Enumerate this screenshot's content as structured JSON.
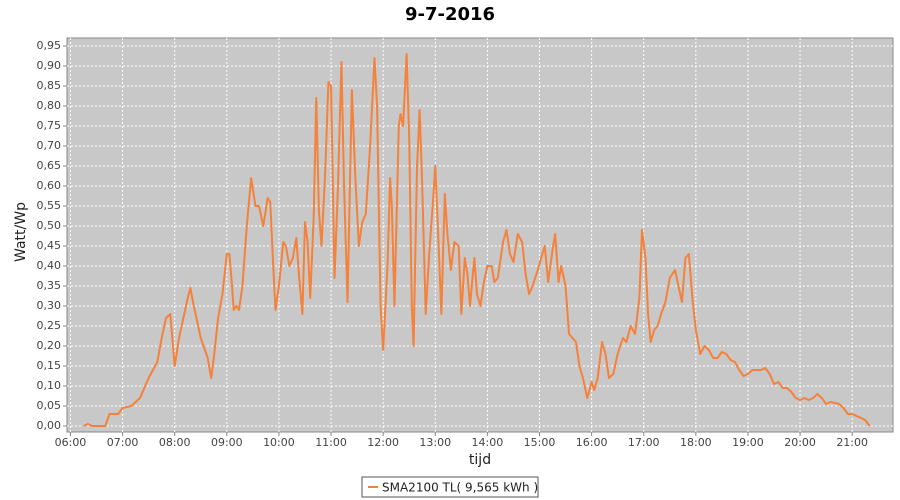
{
  "chart_data": {
    "type": "line",
    "title": "9-7-2016",
    "x_label": "tijd",
    "y_label": "Watt/Wp",
    "grid": true,
    "legend": "bottom",
    "plot_background": "#c8c8c8",
    "xlim": [
      "05:56",
      "21:47"
    ],
    "xticks": [
      "06:00",
      "07:00",
      "08:00",
      "09:00",
      "10:00",
      "11:00",
      "12:00",
      "13:00",
      "14:00",
      "15:00",
      "16:00",
      "17:00",
      "18:00",
      "19:00",
      "20:00",
      "21:00"
    ],
    "ylim": [
      -0.015,
      0.97
    ],
    "yticks": [
      {
        "value": 0,
        "label": "0,00"
      },
      {
        "value": 0.05,
        "label": "0,05"
      },
      {
        "value": 0.1,
        "label": "0,10"
      },
      {
        "value": 0.15,
        "label": "0,15"
      },
      {
        "value": 0.2,
        "label": "0,20"
      },
      {
        "value": 0.25,
        "label": "0,25"
      },
      {
        "value": 0.3,
        "label": "0,30"
      },
      {
        "value": 0.35,
        "label": "0,35"
      },
      {
        "value": 0.4,
        "label": "0,40"
      },
      {
        "value": 0.45,
        "label": "0,45"
      },
      {
        "value": 0.5,
        "label": "0,50"
      },
      {
        "value": 0.55,
        "label": "0,55"
      },
      {
        "value": 0.6,
        "label": "0,60"
      },
      {
        "value": 0.65,
        "label": "0,65"
      },
      {
        "value": 0.7,
        "label": "0,70"
      },
      {
        "value": 0.75,
        "label": "0,75"
      },
      {
        "value": 0.8,
        "label": "0,80"
      },
      {
        "value": 0.85,
        "label": "0,85"
      },
      {
        "value": 0.9,
        "label": "0,90"
      },
      {
        "value": 0.95,
        "label": "0,95"
      }
    ],
    "x": [
      "06:15",
      "06:20",
      "06:25",
      "06:40",
      "06:45",
      "06:55",
      "07:00",
      "07:10",
      "07:20",
      "07:30",
      "07:40",
      "07:45",
      "07:50",
      "07:55",
      "07:58",
      "08:00",
      "08:05",
      "08:10",
      "08:15",
      "08:18",
      "08:22",
      "08:30",
      "08:38",
      "08:42",
      "08:45",
      "08:50",
      "08:55",
      "09:00",
      "09:03",
      "09:06",
      "09:08",
      "09:11",
      "09:14",
      "09:18",
      "09:23",
      "09:28",
      "09:33",
      "09:37",
      "09:42",
      "09:47",
      "09:50",
      "09:53",
      "09:56",
      "10:00",
      "10:05",
      "10:08",
      "10:12",
      "10:16",
      "10:20",
      "10:23",
      "10:27",
      "10:30",
      "10:33",
      "10:36",
      "10:40",
      "10:43",
      "10:46",
      "10:49",
      "10:53",
      "10:57",
      "11:00",
      "11:04",
      "11:08",
      "11:12",
      "11:15",
      "11:19",
      "11:24",
      "11:28",
      "11:32",
      "11:36",
      "11:40",
      "11:45",
      "11:50",
      "11:53",
      "11:57",
      "12:00",
      "12:05",
      "12:08",
      "12:10",
      "12:13",
      "12:18",
      "12:20",
      "12:23",
      "12:27",
      "12:30",
      "12:33",
      "12:35",
      "12:39",
      "12:42",
      "12:45",
      "12:49",
      "12:53",
      "12:57",
      "13:00",
      "13:03",
      "13:07",
      "13:11",
      "13:14",
      "13:18",
      "13:22",
      "13:27",
      "13:30",
      "13:34",
      "13:37",
      "13:40",
      "13:45",
      "13:48",
      "13:52",
      "13:56",
      "14:00",
      "14:05",
      "14:08",
      "14:12",
      "14:18",
      "14:22",
      "14:26",
      "14:30",
      "14:35",
      "14:40",
      "14:44",
      "14:48",
      "14:52",
      "14:58",
      "15:02",
      "15:06",
      "15:10",
      "15:15",
      "15:18",
      "15:22",
      "15:25",
      "15:30",
      "15:34",
      "15:38",
      "15:42",
      "15:46",
      "15:50",
      "15:55",
      "16:00",
      "16:03",
      "16:07",
      "16:12",
      "16:16",
      "16:20",
      "16:25",
      "16:30",
      "16:36",
      "16:40",
      "16:45",
      "16:50",
      "16:55",
      "16:58",
      "17:02",
      "17:05",
      "17:08",
      "17:12",
      "17:16",
      "17:20",
      "17:25",
      "17:30",
      "17:36",
      "17:40",
      "17:44",
      "17:48",
      "17:52",
      "17:56",
      "18:00",
      "18:05",
      "18:10",
      "18:15",
      "18:20",
      "18:25",
      "18:30",
      "18:35",
      "18:40",
      "18:45",
      "18:50",
      "18:55",
      "19:00",
      "19:05",
      "19:15",
      "19:20",
      "19:25",
      "19:30",
      "19:35",
      "19:40",
      "19:45",
      "19:50",
      "19:55",
      "20:00",
      "20:05",
      "20:10",
      "20:15",
      "20:20",
      "20:25",
      "20:30",
      "20:35",
      "20:45",
      "20:50",
      "20:55",
      "21:00",
      "21:05",
      "21:10",
      "21:15",
      "21:20"
    ],
    "series": [
      {
        "name": "SMA2100 TL( 9,565 kWh )",
        "color": "#f5813a",
        "values": [
          0,
          0.005,
          0,
          0,
          0.03,
          0.03,
          0.045,
          0.05,
          0.07,
          0.12,
          0.16,
          0.22,
          0.27,
          0.28,
          0.2,
          0.15,
          0.22,
          0.27,
          0.32,
          0.345,
          0.3,
          0.22,
          0.17,
          0.12,
          0.17,
          0.27,
          0.33,
          0.43,
          0.43,
          0.35,
          0.29,
          0.3,
          0.29,
          0.35,
          0.5,
          0.62,
          0.55,
          0.55,
          0.5,
          0.57,
          0.56,
          0.42,
          0.29,
          0.35,
          0.46,
          0.45,
          0.4,
          0.42,
          0.47,
          0.38,
          0.28,
          0.51,
          0.46,
          0.32,
          0.52,
          0.82,
          0.54,
          0.45,
          0.62,
          0.86,
          0.85,
          0.37,
          0.6,
          0.91,
          0.6,
          0.31,
          0.84,
          0.62,
          0.45,
          0.51,
          0.53,
          0.7,
          0.92,
          0.8,
          0.3,
          0.19,
          0.4,
          0.62,
          0.55,
          0.3,
          0.75,
          0.78,
          0.75,
          0.93,
          0.72,
          0.3,
          0.2,
          0.65,
          0.79,
          0.6,
          0.28,
          0.43,
          0.55,
          0.65,
          0.5,
          0.28,
          0.58,
          0.48,
          0.39,
          0.46,
          0.45,
          0.28,
          0.42,
          0.38,
          0.3,
          0.42,
          0.33,
          0.3,
          0.36,
          0.4,
          0.4,
          0.36,
          0.37,
          0.46,
          0.49,
          0.43,
          0.41,
          0.48,
          0.46,
          0.38,
          0.33,
          0.35,
          0.39,
          0.42,
          0.45,
          0.36,
          0.44,
          0.48,
          0.36,
          0.4,
          0.35,
          0.23,
          0.22,
          0.21,
          0.15,
          0.12,
          0.07,
          0.11,
          0.09,
          0.12,
          0.21,
          0.18,
          0.12,
          0.13,
          0.18,
          0.22,
          0.21,
          0.25,
          0.23,
          0.32,
          0.49,
          0.42,
          0.28,
          0.21,
          0.24,
          0.25,
          0.28,
          0.31,
          0.37,
          0.39,
          0.35,
          0.31,
          0.42,
          0.43,
          0.32,
          0.24,
          0.18,
          0.2,
          0.19,
          0.17,
          0.17,
          0.185,
          0.18,
          0.165,
          0.16,
          0.14,
          0.125,
          0.13,
          0.14,
          0.14,
          0.145,
          0.13,
          0.105,
          0.11,
          0.095,
          0.095,
          0.085,
          0.07,
          0.065,
          0.07,
          0.065,
          0.07,
          0.08,
          0.07,
          0.055,
          0.06,
          0.055,
          0.045,
          0.03,
          0.03,
          0.025,
          0.02,
          0.015,
          0
        ]
      }
    ]
  }
}
